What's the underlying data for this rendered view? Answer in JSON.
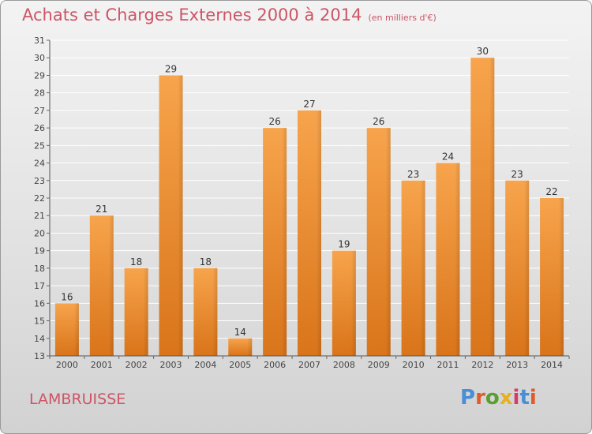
{
  "header": {
    "title": "Achats et Charges Externes 2000 à 2014",
    "unit": "(en milliers d'€)"
  },
  "footer": {
    "commune": "LAMBRUISSE",
    "brand": "Proxiti"
  },
  "colors": {
    "title": "#cc5566",
    "bar_light": "#f7a44c",
    "bar_dark": "#d9741a",
    "logo": [
      "#4a8ed6",
      "#e05a2a",
      "#5aa030",
      "#e8b020",
      "#d63a6a",
      "#4a8ed6",
      "#e05a2a"
    ]
  },
  "chart_data": {
    "type": "bar",
    "title": "Achats et Charges Externes 2000 à 2014",
    "xlabel": "",
    "ylabel": "",
    "categories": [
      "2000",
      "2001",
      "2002",
      "2003",
      "2004",
      "2005",
      "2006",
      "2007",
      "2008",
      "2009",
      "2010",
      "2011",
      "2012",
      "2013",
      "2014"
    ],
    "values": [
      16,
      21,
      18,
      29,
      18,
      14,
      26,
      27,
      19,
      26,
      23,
      24,
      30,
      23,
      22
    ],
    "ylim": [
      13,
      31
    ],
    "yticks": [
      13,
      14,
      15,
      16,
      17,
      18,
      19,
      20,
      21,
      22,
      23,
      24,
      25,
      26,
      27,
      28,
      29,
      30,
      31
    ],
    "grid": true,
    "legend": "none"
  }
}
